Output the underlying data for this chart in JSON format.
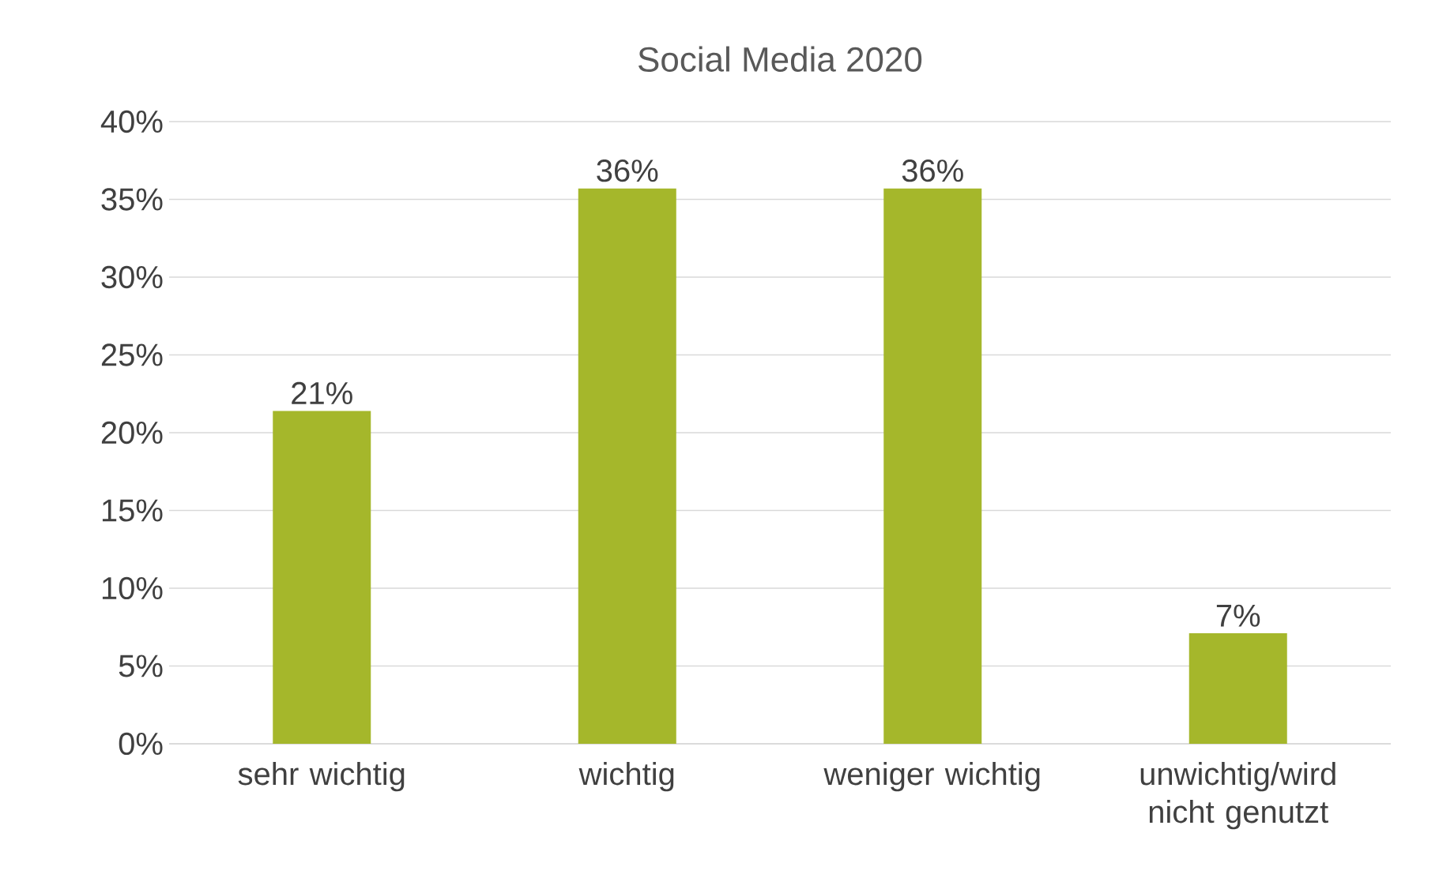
{
  "chart_data": {
    "type": "bar",
    "title": "Social Media 2020",
    "categories": [
      "sehr wichtig",
      "wichtig",
      "weniger wichtig",
      "unwichtig/wird nicht genutzt"
    ],
    "values": [
      21.4,
      35.7,
      35.7,
      7.1
    ],
    "value_labels": [
      "21%",
      "36%",
      "36%",
      "7%"
    ],
    "color": "#a5b72b",
    "ylim": [
      0,
      40
    ],
    "yticks": [
      {
        "value": 0,
        "label": "0%"
      },
      {
        "value": 5,
        "label": "5%"
      },
      {
        "value": 10,
        "label": "10%"
      },
      {
        "value": 15,
        "label": "15%"
      },
      {
        "value": 20,
        "label": "20%"
      },
      {
        "value": 25,
        "label": "25%"
      },
      {
        "value": 30,
        "label": "30%"
      },
      {
        "value": 35,
        "label": "35%"
      },
      {
        "value": 40,
        "label": "40%"
      }
    ],
    "grid": "y"
  }
}
